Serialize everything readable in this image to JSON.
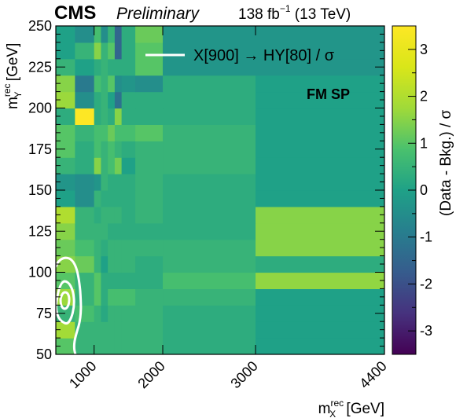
{
  "header": {
    "experiment": "CMS",
    "status": "Preliminary",
    "luminosity_prefix": "138 fb",
    "luminosity_exponent": "−1",
    "luminosity_suffix": " (13 TeV)"
  },
  "chart_data": {
    "type": "heatmap",
    "xlabel_base": "m",
    "xlabel_sup": "rec",
    "xlabel_sub": "X",
    "xlabel_unit": " [GeV]",
    "ylabel_base": "m",
    "ylabel_sup": "rec",
    "ylabel_sub": "Y",
    "ylabel_unit": " [GeV]",
    "zlabel": "(Data - Bkg.) / σ",
    "xlim": [
      800,
      4400
    ],
    "ylim": [
      50,
      250
    ],
    "zlim": [
      -3.5,
      3.5
    ],
    "x_ticks": [
      {
        "value": 1000,
        "label": "1000"
      },
      {
        "value": 2000,
        "label": "2000"
      },
      {
        "value": 3000,
        "label": "3000"
      },
      {
        "value": 4400,
        "label": "4400"
      }
    ],
    "y_ticks": [
      {
        "value": 50,
        "label": "50"
      },
      {
        "value": 75,
        "label": "75"
      },
      {
        "value": 100,
        "label": "100"
      },
      {
        "value": 125,
        "label": "125"
      },
      {
        "value": 150,
        "label": "150"
      },
      {
        "value": 175,
        "label": "175"
      },
      {
        "value": 200,
        "label": "200"
      },
      {
        "value": 225,
        "label": "225"
      },
      {
        "value": 250,
        "label": "250"
      }
    ],
    "z_ticks": [
      {
        "value": -3,
        "label": "-3"
      },
      {
        "value": -2,
        "label": "-2"
      },
      {
        "value": -1,
        "label": "-1"
      },
      {
        "value": 0,
        "label": "0"
      },
      {
        "value": 1,
        "label": "1"
      },
      {
        "value": 2,
        "label": "2"
      },
      {
        "value": 3,
        "label": "3"
      }
    ],
    "legend": {
      "label": "X[900] → HY[80] / σ",
      "position": "top-right",
      "color": "#ffffff"
    },
    "annotation": "FM SP",
    "x_edges": [
      800,
      900,
      1000,
      1100,
      1200,
      1300,
      1400,
      1600,
      2000,
      3000,
      4400
    ],
    "y_edges": [
      50,
      60,
      70,
      80,
      90,
      100,
      110,
      120,
      130,
      140,
      150,
      160,
      170,
      180,
      190,
      200,
      210,
      220,
      230,
      240,
      250
    ],
    "z_rows_from_bottom": [
      [
        1.0,
        0.5,
        0.5,
        0.5,
        0.5,
        0.5,
        0.5,
        0.5,
        0.3,
        0.0
      ],
      [
        1.8,
        0.5,
        0.5,
        0.5,
        0.5,
        0.5,
        0.5,
        0.5,
        0.3,
        0.0
      ],
      [
        0.5,
        0.8,
        0.5,
        0.2,
        0.5,
        0.5,
        0.5,
        0.5,
        0.3,
        0.0
      ],
      [
        1.7,
        0.5,
        1.0,
        0.3,
        0.8,
        0.8,
        0.8,
        0.5,
        0.5,
        0.0
      ],
      [
        1.0,
        0.5,
        1.0,
        0.3,
        0.3,
        0.3,
        0.3,
        0.3,
        0.8,
        1.6
      ],
      [
        1.5,
        1.2,
        0.5,
        0.0,
        0.5,
        0.5,
        0.5,
        0.3,
        0.5,
        0.3
      ],
      [
        1.2,
        0.8,
        0.5,
        0.3,
        0.5,
        0.5,
        0.5,
        0.5,
        0.5,
        1.5
      ],
      [
        1.5,
        0.5,
        0.5,
        0.5,
        0.3,
        0.3,
        0.3,
        0.3,
        0.3,
        1.5
      ],
      [
        2.0,
        0.5,
        0.3,
        0.5,
        0.5,
        0.5,
        0.3,
        0.5,
        0.3,
        1.5
      ],
      [
        0.0,
        -0.5,
        0.5,
        0.3,
        0.3,
        0.3,
        0.3,
        0.5,
        0.3,
        0.0
      ],
      [
        -0.3,
        -0.5,
        -0.3,
        0.5,
        0.3,
        0.3,
        0.3,
        0.5,
        0.3,
        0.0
      ],
      [
        0.5,
        0.3,
        1.5,
        0.5,
        0.8,
        1.3,
        0.0,
        0.5,
        0.5,
        0.0
      ],
      [
        1.0,
        0.3,
        0.8,
        0.5,
        0.8,
        0.5,
        0.3,
        0.5,
        0.5,
        0.0
      ],
      [
        1.0,
        0.5,
        0.8,
        0.8,
        1.2,
        0.8,
        0.8,
        1.0,
        0.5,
        0.0
      ],
      [
        0.3,
        3.5,
        0.3,
        0.5,
        0.3,
        1.5,
        0.3,
        0.3,
        0.3,
        0.0
      ],
      [
        1.7,
        -0.5,
        0.3,
        0.5,
        0.0,
        -1.2,
        0.3,
        0.3,
        0.3,
        0.0
      ],
      [
        1.5,
        -1.0,
        0.8,
        0.5,
        1.0,
        -0.5,
        -0.3,
        -0.5,
        0.3,
        0.0
      ],
      [
        0.5,
        0.0,
        0.3,
        0.5,
        0.3,
        0.3,
        0.3,
        1.0,
        -0.3,
        -0.3
      ],
      [
        0.0,
        0.5,
        1.5,
        0.5,
        1.0,
        -1.5,
        0.3,
        1.0,
        -0.3,
        -0.3
      ],
      [
        0.0,
        -0.5,
        0.8,
        -0.5,
        0.5,
        -1.5,
        0.3,
        1.2,
        -0.3,
        -0.3
      ]
    ],
    "contour_signal": "X[900] → HY[80]"
  }
}
